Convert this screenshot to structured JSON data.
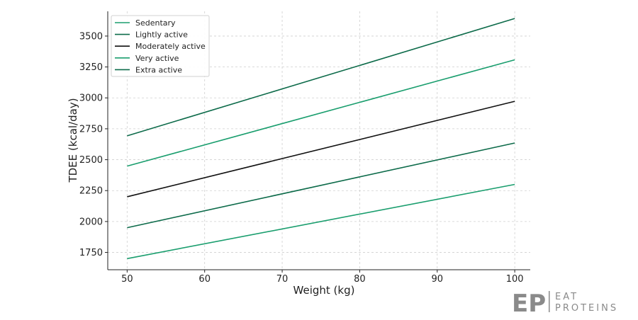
{
  "chart_data": {
    "type": "line",
    "xlabel": "Weight (kg)",
    "ylabel": "TDEE (kcal/day)",
    "xlim": [
      47.5,
      102
    ],
    "ylim": [
      1610,
      3700
    ],
    "xticks": [
      50,
      60,
      70,
      80,
      90,
      100
    ],
    "yticks": [
      1750,
      2000,
      2250,
      2500,
      2750,
      3000,
      3250,
      3500
    ],
    "grid": true,
    "legend_position": "top-left",
    "x": [
      50,
      100
    ],
    "series": [
      {
        "name": "Sedentary",
        "color": "#1a9e6e",
        "values": [
          1700,
          2300
        ]
      },
      {
        "name": "Lightly active",
        "color": "#0d6b4a",
        "values": [
          1950,
          2635
        ]
      },
      {
        "name": "Moderately active",
        "color": "#111111",
        "values": [
          2200,
          2972
        ]
      },
      {
        "name": "Very active",
        "color": "#1a9e6e",
        "values": [
          2448,
          3308
        ]
      },
      {
        "name": "Extra active",
        "color": "#0d6b4a",
        "values": [
          2693,
          3642
        ]
      }
    ]
  },
  "brand": {
    "mark": "EP",
    "line1": "EAT",
    "line2": "PROTEINS"
  }
}
